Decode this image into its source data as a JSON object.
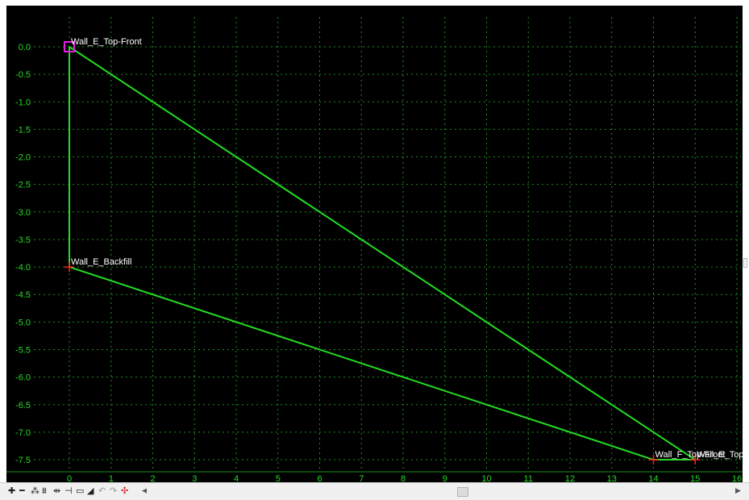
{
  "colors": {
    "background": "#000000",
    "grid": "#1f8f1f",
    "axis_label": "#22dd22",
    "profile_line": "#22dd22",
    "point_marker": "#ff2020",
    "selected_marker": "#e020e0",
    "point_label": "#ffffff"
  },
  "chart_data": {
    "type": "line",
    "xlim": [
      0,
      16
    ],
    "ylim": [
      -7.5,
      0.0
    ],
    "x_ticks": [
      "0",
      "1",
      "2",
      "3",
      "4",
      "5",
      "6",
      "7",
      "8",
      "9",
      "10",
      "11",
      "12",
      "13",
      "14",
      "15",
      "16"
    ],
    "y_ticks": [
      "0.0",
      "-0.5",
      "-1.0",
      "-1.5",
      "-2.0",
      "-2.5",
      "-3.0",
      "-3.5",
      "-4.0",
      "-4.5",
      "-5.0",
      "-5.5",
      "-6.0",
      "-6.5",
      "-7.0",
      "-7.5"
    ],
    "grid": true,
    "segments": [
      [
        [
          0,
          0
        ],
        [
          0,
          -4
        ]
      ],
      [
        [
          0,
          -4
        ],
        [
          14,
          -7.5
        ]
      ],
      [
        [
          14,
          -7.5
        ],
        [
          15,
          -7.5
        ]
      ],
      [
        [
          15,
          -7.5
        ],
        [
          0,
          0
        ]
      ]
    ],
    "points": [
      {
        "name": "Wall_E_Top-Front",
        "x": 0,
        "y": 0,
        "selected": true
      },
      {
        "name": "Wall_E_Backfill",
        "x": 0,
        "y": -4,
        "selected": false
      },
      {
        "name": "Wall_F_Top-Front",
        "x": 14,
        "y": -7.5,
        "selected": false
      },
      {
        "name": "Wall_E_Top-Back",
        "x": 15,
        "y": -7.5,
        "selected": false
      }
    ]
  },
  "toolbar": {
    "tools": [
      {
        "id": "add",
        "glyph": "✚",
        "icon": "add-point-icon"
      },
      {
        "id": "remove",
        "glyph": "━",
        "icon": "remove-point-icon"
      },
      {
        "id": "t3",
        "glyph": "⁂",
        "icon": "insert-point-icon"
      },
      {
        "id": "t4",
        "glyph": "⩩",
        "icon": "split-segment-icon"
      },
      {
        "id": "t5",
        "glyph": "⇹",
        "icon": "move-horizontal-icon"
      },
      {
        "id": "t6",
        "glyph": "⊣",
        "icon": "move-vertical-icon"
      },
      {
        "id": "t7",
        "glyph": "▭",
        "icon": "window-zoom-icon"
      },
      {
        "id": "t8",
        "glyph": "◢",
        "icon": "fit-view-icon"
      },
      {
        "id": "undo",
        "glyph": "↶",
        "icon": "undo-icon"
      },
      {
        "id": "redo",
        "glyph": "↷",
        "icon": "redo-icon"
      },
      {
        "id": "t11",
        "glyph": "✣",
        "icon": "pan-icon"
      }
    ]
  }
}
